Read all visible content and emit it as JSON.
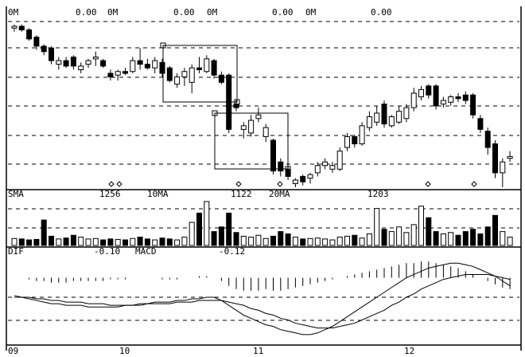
{
  "header": [
    "0M",
    "0.00",
    "0M",
    "0.00",
    "0M",
    "0.00",
    "0M",
    "0.00"
  ],
  "x_labels": [
    "09",
    "10",
    "11",
    "12"
  ],
  "chart_data": [
    {
      "type": "candlestick",
      "open": [
        88,
        89,
        87,
        83,
        78,
        77,
        68,
        70,
        72,
        65,
        68,
        71,
        70,
        63,
        62,
        64,
        64,
        70,
        68,
        66,
        69,
        66,
        57,
        61,
        58,
        66,
        64,
        70,
        62,
        62,
        46,
        32,
        30,
        38,
        28,
        26,
        14,
        10,
        2,
        6,
        5,
        8,
        12,
        10,
        10,
        22,
        28,
        24,
        33,
        36,
        46,
        34,
        36,
        38,
        44,
        50,
        56,
        56,
        46,
        47,
        50,
        51,
        51,
        38,
        31,
        24,
        8,
        16
      ],
      "high": [
        90,
        90,
        88,
        84,
        79,
        78,
        72,
        72,
        73,
        69,
        71,
        75,
        71,
        65,
        65,
        66,
        72,
        77,
        71,
        72,
        71,
        67,
        63,
        66,
        68,
        72,
        73,
        71,
        64,
        63,
        48,
        36,
        40,
        44,
        35,
        27,
        16,
        12,
        5,
        7,
        8,
        14,
        16,
        14,
        22,
        30,
        29,
        36,
        42,
        45,
        48,
        40,
        45,
        46,
        55,
        56,
        57,
        57,
        50,
        51,
        52,
        53,
        52,
        40,
        33,
        26,
        16,
        20
      ],
      "low": [
        86,
        86,
        81,
        76,
        73,
        68,
        65,
        66,
        65,
        63,
        66,
        67,
        66,
        59,
        59,
        62,
        63,
        65,
        65,
        63,
        61,
        58,
        55,
        56,
        52,
        63,
        63,
        60,
        57,
        30,
        42,
        27,
        28,
        36,
        25,
        7,
        6,
        4,
        0,
        1,
        2,
        6,
        10,
        8,
        9,
        20,
        22,
        23,
        31,
        34,
        33,
        33,
        35,
        36,
        42,
        48,
        49,
        43,
        44,
        45,
        47,
        46,
        38,
        30,
        18,
        5,
        0,
        14
      ],
      "close": [
        89,
        87,
        82,
        78,
        75,
        70,
        70,
        67,
        67,
        67,
        70,
        72,
        67,
        61,
        64,
        63,
        70,
        68,
        66,
        70,
        63,
        59,
        61,
        64,
        66,
        65,
        71,
        62,
        58,
        32,
        44,
        34,
        37,
        40,
        33,
        9,
        9,
        6,
        4,
        3,
        7,
        12,
        14,
        12,
        20,
        28,
        24,
        34,
        39,
        41,
        35,
        39,
        42,
        44,
        52,
        54,
        51,
        45,
        48,
        50,
        49,
        48,
        40,
        32,
        22,
        8,
        14,
        17
      ],
      "ylim": [
        0,
        100
      ],
      "up_color": "#ffffff",
      "down_color": "#000000"
    },
    {
      "type": "bar",
      "title": "SMA",
      "annotations": [
        "1256",
        "10MA",
        "1122",
        "20MA",
        "1203"
      ],
      "values": [
        15,
        14,
        12,
        13,
        55,
        20,
        14,
        16,
        22,
        18,
        14,
        15,
        12,
        14,
        13,
        12,
        15,
        18,
        14,
        12,
        16,
        14,
        12,
        18,
        50,
        70,
        95,
        30,
        40,
        70,
        28,
        20,
        18,
        22,
        15,
        20,
        30,
        25,
        18,
        14,
        15,
        16,
        14,
        12,
        18,
        20,
        22,
        16,
        25,
        80,
        35,
        30,
        40,
        28,
        45,
        85,
        60,
        30,
        25,
        28,
        22,
        30,
        35,
        25,
        40,
        65,
        30,
        18
      ],
      "ylim": [
        0,
        100
      ]
    },
    {
      "type": "macd",
      "annotations": [
        "DIF",
        "-0.10",
        "MACD",
        "-0.12"
      ],
      "histogram": [
        0,
        0,
        -0.01,
        -0.02,
        -0.02,
        -0.03,
        -0.03,
        -0.03,
        -0.02,
        -0.02,
        -0.02,
        -0.02,
        -0.02,
        -0.01,
        -0.01,
        -0.01,
        0,
        0,
        0,
        0,
        -0.01,
        -0.01,
        -0.01,
        0,
        0,
        0.01,
        0.01,
        0,
        -0.02,
        -0.05,
        -0.07,
        -0.08,
        -0.08,
        -0.08,
        -0.07,
        -0.08,
        -0.08,
        -0.07,
        -0.06,
        -0.05,
        -0.04,
        -0.03,
        -0.02,
        -0.01,
        0,
        0.01,
        0.02,
        0.03,
        0.04,
        0.05,
        0.06,
        0.07,
        0.08,
        0.09,
        0.09,
        0.1,
        0.1,
        0.09,
        0.08,
        0.07,
        0.06,
        0.04,
        0.02,
        0,
        -0.02,
        -0.04,
        -0.06,
        -0.07
      ],
      "lines": [
        {
          "values": [
            -0.11,
            -0.12,
            -0.13,
            -0.14,
            -0.15,
            -0.16,
            -0.16,
            -0.17,
            -0.17,
            -0.17,
            -0.18,
            -0.18,
            -0.18,
            -0.18,
            -0.18,
            -0.17,
            -0.17,
            -0.16,
            -0.16,
            -0.15,
            -0.15,
            -0.15,
            -0.14,
            -0.14,
            -0.13,
            -0.13,
            -0.12,
            -0.12,
            -0.14,
            -0.17,
            -0.2,
            -0.23,
            -0.25,
            -0.27,
            -0.29,
            -0.3,
            -0.32,
            -0.33,
            -0.34,
            -0.35,
            -0.35,
            -0.34,
            -0.32,
            -0.3,
            -0.27,
            -0.24,
            -0.21,
            -0.18,
            -0.15,
            -0.12,
            -0.09,
            -0.06,
            -0.03,
            0,
            0.02,
            0.04,
            0.06,
            0.07,
            0.08,
            0.09,
            0.09,
            0.08,
            0.07,
            0.05,
            0.03,
            0.01,
            -0.02,
            -0.05
          ]
        },
        {
          "values": [
            -0.12,
            -0.12,
            -0.12,
            -0.13,
            -0.13,
            -0.14,
            -0.14,
            -0.15,
            -0.15,
            -0.15,
            -0.16,
            -0.16,
            -0.16,
            -0.17,
            -0.17,
            -0.17,
            -0.17,
            -0.17,
            -0.16,
            -0.16,
            -0.16,
            -0.16,
            -0.15,
            -0.15,
            -0.15,
            -0.14,
            -0.14,
            -0.14,
            -0.14,
            -0.15,
            -0.16,
            -0.17,
            -0.19,
            -0.2,
            -0.22,
            -0.23,
            -0.25,
            -0.26,
            -0.28,
            -0.29,
            -0.3,
            -0.31,
            -0.31,
            -0.31,
            -0.3,
            -0.29,
            -0.28,
            -0.26,
            -0.24,
            -0.22,
            -0.2,
            -0.17,
            -0.15,
            -0.12,
            -0.1,
            -0.07,
            -0.05,
            -0.03,
            -0.01,
            0,
            0.01,
            0.02,
            0.02,
            0.02,
            0.02,
            0.01,
            0,
            -0.01
          ]
        }
      ],
      "ylim": [
        -0.4,
        0.15
      ]
    }
  ]
}
